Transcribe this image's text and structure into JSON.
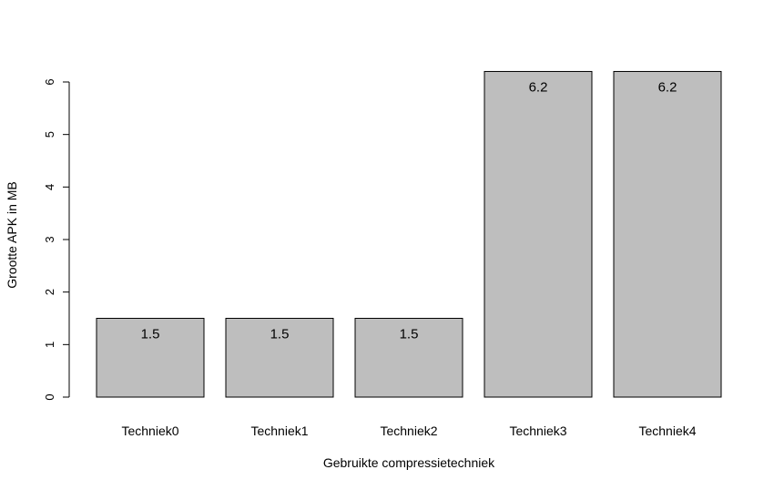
{
  "chart_data": {
    "type": "bar",
    "categories": [
      "Techniek0",
      "Techniek1",
      "Techniek2",
      "Techniek3",
      "Techniek4"
    ],
    "values": [
      1.5,
      1.5,
      1.5,
      6.2,
      6.2
    ],
    "data_labels": [
      "1.5",
      "1.5",
      "1.5",
      "6.2",
      "6.2"
    ],
    "title": "",
    "xlabel": "Gebruikte compressietechniek",
    "ylabel": "Grootte APK in MB",
    "ylim": [
      0,
      6
    ],
    "yticks": [
      0,
      1,
      2,
      3,
      4,
      5,
      6
    ],
    "ytick_labels": [
      "0",
      "1",
      "2",
      "3",
      "4",
      "5",
      "6"
    ],
    "grid": false,
    "legend": "none",
    "colors": {
      "bar_fill": "#bebebe",
      "bar_stroke": "#000000"
    }
  }
}
